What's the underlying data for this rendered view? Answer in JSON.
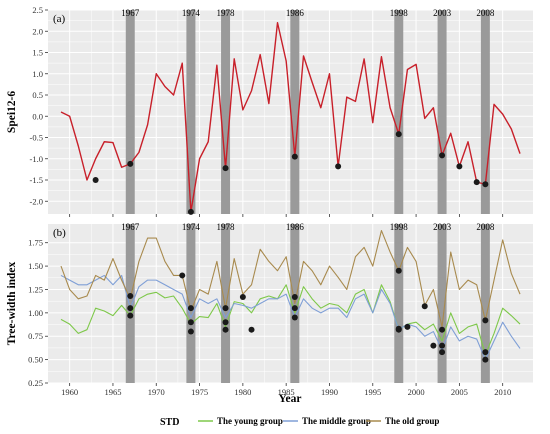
{
  "chart_data": [
    {
      "type": "line",
      "panel_label": "(a)",
      "ylabel": "Spei12-6",
      "ylim": [
        -2.3,
        2.5
      ],
      "yticks": [
        "-2.0",
        "-1.5",
        "-1.0",
        "-0.5",
        "0.0",
        "0.5",
        "1.0",
        "1.5",
        "2.0",
        "2.5"
      ],
      "ytick_values": [
        -2.0,
        -1.5,
        -1.0,
        -0.5,
        0.0,
        0.5,
        1.0,
        1.5,
        2.0,
        2.5
      ],
      "xlim": [
        1957.5,
        2013.5
      ],
      "drought_years": [
        "1967",
        "1974",
        "1978",
        "1986",
        "1998",
        "2003",
        "2008"
      ],
      "drought_year_values": [
        1967,
        1974,
        1978,
        1986,
        1998,
        2003,
        2008
      ],
      "line_color": "#c8202a",
      "series": [
        {
          "x": [
            1959,
            1960,
            1961,
            1962,
            1963,
            1964,
            1965,
            1966,
            1967,
            1968,
            1969,
            1970,
            1971,
            1972,
            1973,
            1974,
            1975,
            1976,
            1977,
            1978,
            1979,
            1980,
            1981,
            1982,
            1983,
            1984,
            1985,
            1986,
            1987,
            1988,
            1989,
            1990,
            1991,
            1992,
            1993,
            1994,
            1995,
            1996,
            1997,
            1998,
            1999,
            2000,
            2001,
            2002,
            2003,
            2004,
            2005,
            2006,
            2007,
            2008,
            2009,
            2010,
            2011,
            2012
          ],
          "values": [
            0.1,
            0.0,
            -0.7,
            -1.5,
            -1.0,
            -0.6,
            -0.62,
            -1.2,
            -1.12,
            -0.85,
            -0.2,
            1.0,
            0.7,
            0.5,
            1.25,
            -2.25,
            -1.0,
            -0.6,
            1.2,
            -1.22,
            1.35,
            0.15,
            0.6,
            1.45,
            0.3,
            2.2,
            1.3,
            -0.95,
            1.42,
            0.8,
            0.2,
            1.0,
            -1.18,
            0.45,
            0.35,
            1.35,
            -0.15,
            1.4,
            0.2,
            -0.42,
            1.1,
            1.22,
            -0.05,
            0.2,
            -0.92,
            -0.4,
            -1.18,
            -0.6,
            -1.55,
            -1.6,
            0.28,
            0.05,
            -0.3,
            -0.88
          ]
        }
      ],
      "markers": {
        "x": [
          1963,
          1967,
          1974,
          1978,
          1986,
          1991,
          1998,
          2003,
          2005,
          2007,
          2008
        ],
        "values": [
          -1.5,
          -1.12,
          -2.25,
          -1.22,
          -0.95,
          -1.18,
          -0.42,
          -0.92,
          -1.18,
          -1.55,
          -1.6
        ]
      }
    },
    {
      "type": "line",
      "panel_label": "(b)",
      "ylabel": "Tree-width index",
      "xlabel": "Year",
      "ylim": [
        0.25,
        1.95
      ],
      "yticks": [
        "0.25",
        "0.50",
        "0.75",
        "1.00",
        "1.25",
        "1.50",
        "1.75"
      ],
      "ytick_values": [
        0.25,
        0.5,
        0.75,
        1.0,
        1.25,
        1.5,
        1.75
      ],
      "xticks": [
        "1960",
        "1965",
        "1970",
        "1975",
        "1980",
        "1985",
        "1990",
        "1995",
        "2000",
        "2005",
        "2010"
      ],
      "xtick_values": [
        1960,
        1965,
        1970,
        1975,
        1980,
        1985,
        1990,
        1995,
        2000,
        2005,
        2010
      ],
      "xlim": [
        1957.5,
        2013.5
      ],
      "drought_years": [
        "1967",
        "1974",
        "1978",
        "1986",
        "1998",
        "2003",
        "2008"
      ],
      "drought_year_values": [
        1967,
        1974,
        1978,
        1986,
        1998,
        2003,
        2008
      ],
      "series": [
        {
          "name": "The young group",
          "color": "#7ec84a",
          "x": [
            1959,
            1960,
            1961,
            1962,
            1963,
            1964,
            1965,
            1966,
            1967,
            1968,
            1969,
            1970,
            1971,
            1972,
            1973,
            1974,
            1975,
            1976,
            1977,
            1978,
            1979,
            1980,
            1981,
            1982,
            1983,
            1984,
            1985,
            1986,
            1987,
            1988,
            1989,
            1990,
            1991,
            1992,
            1993,
            1994,
            1995,
            1996,
            1997,
            1998,
            1999,
            2000,
            2001,
            2002,
            2003,
            2004,
            2005,
            2006,
            2007,
            2008,
            2009,
            2010,
            2011,
            2012
          ],
          "values": [
            0.93,
            0.88,
            0.78,
            0.82,
            1.05,
            1.02,
            0.97,
            1.08,
            0.97,
            1.15,
            1.2,
            1.22,
            1.16,
            1.18,
            1.05,
            0.88,
            0.96,
            0.95,
            1.1,
            0.85,
            1.12,
            1.1,
            1.0,
            1.15,
            1.18,
            1.15,
            1.3,
            1.0,
            1.28,
            1.15,
            1.05,
            1.1,
            1.08,
            1.0,
            1.2,
            1.25,
            1.0,
            1.3,
            1.12,
            0.82,
            0.88,
            0.9,
            0.82,
            0.88,
            0.7,
            1.0,
            0.78,
            0.85,
            0.88,
            0.55,
            0.78,
            1.05,
            0.97,
            0.88
          ]
        },
        {
          "name": "The middle group",
          "color": "#7f9fd6",
          "x": [
            1959,
            1960,
            1961,
            1962,
            1963,
            1964,
            1965,
            1966,
            1967,
            1968,
            1969,
            1970,
            1971,
            1972,
            1973,
            1974,
            1975,
            1976,
            1977,
            1978,
            1979,
            1980,
            1981,
            1982,
            1983,
            1984,
            1985,
            1986,
            1987,
            1988,
            1989,
            1990,
            1991,
            1992,
            1993,
            1994,
            1995,
            1996,
            1997,
            1998,
            1999,
            2000,
            2001,
            2002,
            2003,
            2004,
            2005,
            2006,
            2007,
            2008,
            2009,
            2010,
            2011,
            2012
          ],
          "values": [
            1.4,
            1.35,
            1.3,
            1.3,
            1.35,
            1.4,
            1.3,
            1.4,
            1.05,
            1.28,
            1.35,
            1.35,
            1.3,
            1.25,
            1.2,
            0.95,
            1.15,
            1.1,
            1.15,
            0.95,
            1.1,
            1.08,
            1.05,
            1.1,
            1.15,
            1.15,
            1.2,
            0.95,
            1.15,
            1.05,
            1.0,
            1.05,
            1.05,
            0.95,
            1.15,
            1.2,
            1.0,
            1.25,
            1.1,
            0.82,
            0.88,
            0.85,
            0.75,
            0.8,
            0.6,
            0.85,
            0.7,
            0.75,
            0.72,
            0.5,
            0.7,
            0.9,
            0.75,
            0.62
          ]
        },
        {
          "name": "The old group",
          "color": "#a88a4e",
          "x": [
            1959,
            1960,
            1961,
            1962,
            1963,
            1964,
            1965,
            1966,
            1967,
            1968,
            1969,
            1970,
            1971,
            1972,
            1973,
            1974,
            1975,
            1976,
            1977,
            1978,
            1979,
            1980,
            1981,
            1982,
            1983,
            1984,
            1985,
            1986,
            1987,
            1988,
            1989,
            1990,
            1991,
            1992,
            1993,
            1994,
            1995,
            1996,
            1997,
            1998,
            1999,
            2000,
            2001,
            2002,
            2003,
            2004,
            2005,
            2006,
            2007,
            2008,
            2009,
            2010,
            2011,
            2012
          ],
          "values": [
            1.5,
            1.25,
            1.15,
            1.18,
            1.4,
            1.35,
            1.58,
            1.35,
            1.15,
            1.55,
            1.8,
            1.8,
            1.55,
            1.4,
            1.4,
            1.02,
            1.25,
            1.2,
            1.55,
            1.05,
            1.58,
            1.2,
            1.3,
            1.68,
            1.55,
            1.45,
            1.6,
            1.1,
            1.55,
            1.45,
            1.3,
            1.5,
            1.38,
            1.25,
            1.6,
            1.7,
            1.5,
            1.88,
            1.65,
            1.45,
            1.7,
            1.55,
            1.08,
            1.25,
            0.85,
            1.65,
            1.25,
            1.35,
            1.3,
            0.92,
            1.35,
            1.78,
            1.42,
            1.2
          ]
        }
      ],
      "markers": {
        "x": [
          1967,
          1967,
          1967,
          1973,
          1974,
          1974,
          1974,
          1978,
          1978,
          1978,
          1980,
          1981,
          1986,
          1986,
          1986,
          1998,
          1998,
          1998,
          1999,
          2001,
          2002,
          2003,
          2003,
          2003,
          2008,
          2008,
          2008
        ],
        "values": [
          1.18,
          1.05,
          0.97,
          1.4,
          1.05,
          0.9,
          0.8,
          1.05,
          0.9,
          0.82,
          1.17,
          0.82,
          1.17,
          1.05,
          0.95,
          1.45,
          0.83,
          0.82,
          0.85,
          1.07,
          0.65,
          0.82,
          0.65,
          0.58,
          0.92,
          0.58,
          0.5
        ]
      }
    }
  ],
  "legend": {
    "title": "STD",
    "items": [
      {
        "label": "The young group",
        "color": "#7ec84a"
      },
      {
        "label": "The middle group",
        "color": "#7f9fd6"
      },
      {
        "label": "The old group",
        "color": "#a88a4e"
      }
    ]
  },
  "colors": {
    "panel_bg": "#ebebeb",
    "grid": "#ffffff",
    "drought_bar": "#9a9a9a",
    "marker": "#1a1a1a"
  }
}
